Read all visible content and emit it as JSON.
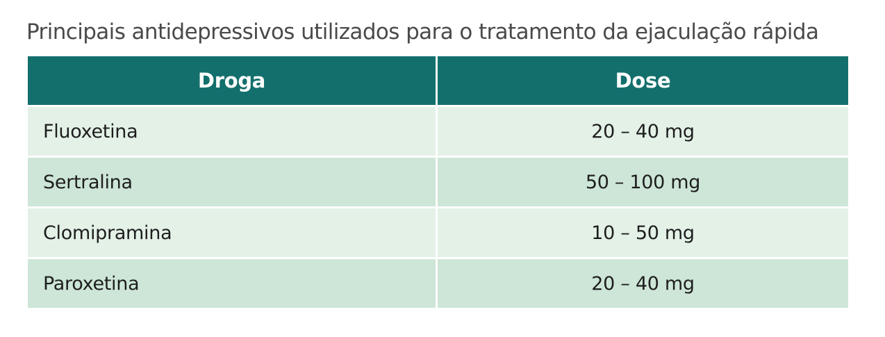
{
  "title": "Principais antidepressivos utilizados para o tratamento da ejaculação rápida",
  "table": {
    "headers": [
      "Droga",
      "Dose"
    ],
    "rows": [
      {
        "drug": "Fluoxetina",
        "dose": "20 – 40 mg"
      },
      {
        "drug": "Sertralina",
        "dose": "50 – 100 mg"
      },
      {
        "drug": "Clomipramina",
        "dose": "10 – 50 mg"
      },
      {
        "drug": "Paroxetina",
        "dose": "20 – 40 mg"
      }
    ]
  },
  "colors": {
    "header_bg": "#136f6c",
    "row_light": "#e3f1e7",
    "row_dark": "#cde6d7"
  }
}
